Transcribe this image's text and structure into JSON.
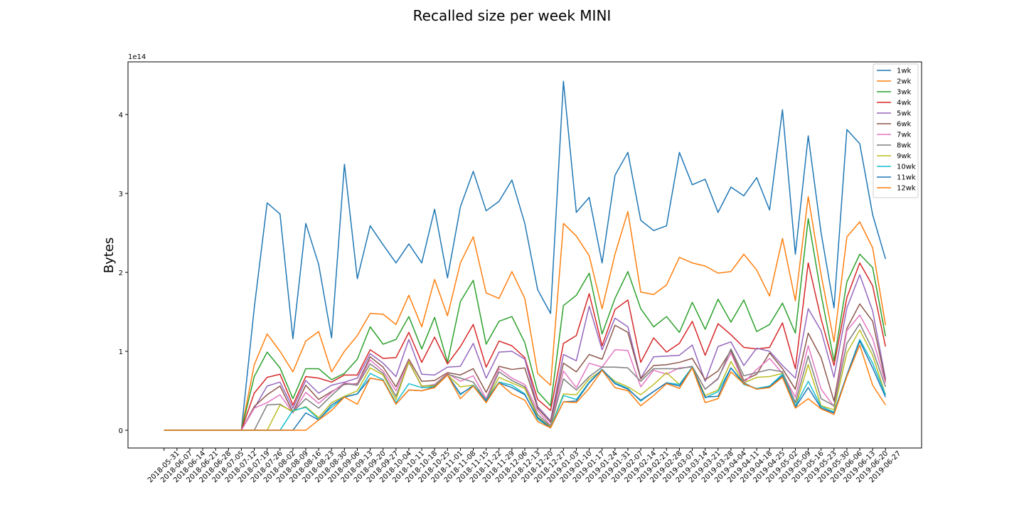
{
  "chart_data": {
    "type": "line",
    "title": "Recalled size per week MINI",
    "y_label": "Bytes",
    "y_offset_text": "1e14",
    "x": [
      "2018-05-31",
      "2018-06-07",
      "2018-06-14",
      "2018-06-21",
      "2018-06-28",
      "2018-07-05",
      "2018-07-12",
      "2018-07-19",
      "2018-07-26",
      "2018-08-02",
      "2018-08-09",
      "2018-08-16",
      "2018-08-23",
      "2018-08-30",
      "2018-09-06",
      "2018-09-13",
      "2018-09-20",
      "2018-09-27",
      "2018-10-04",
      "2018-10-11",
      "2018-10-18",
      "2018-10-25",
      "2018-11-01",
      "2018-11-08",
      "2018-11-15",
      "2018-11-22",
      "2018-11-29",
      "2018-12-06",
      "2018-12-13",
      "2018-12-20",
      "2018-12-27",
      "2019-01-03",
      "2019-01-10",
      "2019-01-17",
      "2019-01-24",
      "2019-01-31",
      "2019-02-07",
      "2019-02-14",
      "2019-02-21",
      "2019-02-28",
      "2019-03-07",
      "2019-03-14",
      "2019-03-21",
      "2019-03-28",
      "2019-04-04",
      "2019-04-11",
      "2019-04-18",
      "2019-04-25",
      "2019-05-02",
      "2019-05-09",
      "2019-05-16",
      "2019-05-23",
      "2019-05-30",
      "2019-06-06",
      "2019-06-13",
      "2019-06-20",
      "2019-06-27"
    ],
    "ylim": [
      -0.225,
      4.667
    ],
    "yticks": [
      0,
      1,
      2,
      3,
      4
    ],
    "legend": "upper right",
    "series": [
      {
        "name": "1wk",
        "color": "#1f77b4",
        "values": [
          0,
          0,
          0,
          0,
          0,
          0,
          0,
          1.55,
          2.88,
          2.74,
          1.16,
          2.62,
          2.1,
          1.17,
          3.37,
          1.92,
          2.59,
          2.35,
          2.12,
          2.36,
          2.12,
          2.8,
          1.93,
          2.83,
          3.28,
          2.78,
          2.9,
          3.17,
          2.62,
          1.78,
          1.48,
          4.42,
          2.76,
          2.95,
          2.12,
          3.23,
          3.52,
          2.66,
          2.53,
          2.59,
          3.52,
          3.11,
          3.18,
          2.76,
          3.08,
          2.97,
          3.2,
          2.79,
          4.06,
          2.23,
          3.73,
          2.5,
          1.55,
          3.81,
          3.63,
          2.73,
          2.17
        ]
      },
      {
        "name": "2wk",
        "color": "#ff7f0e",
        "values": [
          0,
          0,
          0,
          0,
          0,
          0,
          0,
          0.83,
          1.22,
          1.0,
          0.74,
          1.13,
          1.25,
          0.74,
          1.0,
          1.2,
          1.48,
          1.47,
          1.34,
          1.71,
          1.31,
          1.91,
          1.45,
          2.12,
          2.45,
          1.74,
          1.67,
          2.01,
          1.67,
          0.72,
          0.57,
          2.62,
          2.46,
          2.21,
          1.54,
          2.23,
          2.77,
          1.75,
          1.72,
          1.84,
          2.19,
          2.12,
          2.08,
          1.99,
          2.01,
          2.23,
          2.03,
          1.7,
          2.43,
          1.64,
          2.96,
          1.97,
          1.12,
          2.45,
          2.64,
          2.31,
          1.33
        ]
      },
      {
        "name": "3wk",
        "color": "#2ca02c",
        "values": [
          0,
          0,
          0,
          0,
          0,
          0,
          0,
          0.68,
          0.99,
          0.79,
          0.4,
          0.78,
          0.78,
          0.64,
          0.72,
          0.9,
          1.31,
          1.09,
          1.15,
          1.44,
          1.03,
          1.43,
          0.86,
          1.63,
          1.9,
          1.09,
          1.38,
          1.44,
          1.11,
          0.49,
          0.31,
          1.58,
          1.71,
          1.99,
          1.22,
          1.67,
          2.01,
          1.54,
          1.31,
          1.44,
          1.24,
          1.62,
          1.28,
          1.66,
          1.37,
          1.65,
          1.25,
          1.34,
          1.61,
          1.23,
          2.68,
          1.72,
          0.88,
          1.88,
          2.23,
          2.06,
          1.19
        ]
      },
      {
        "name": "4wk",
        "color": "#d62728",
        "values": [
          0,
          0,
          0,
          0,
          0,
          0,
          0,
          0.47,
          0.67,
          0.71,
          0.32,
          0.68,
          0.66,
          0.61,
          0.7,
          0.7,
          1.02,
          0.91,
          0.92,
          1.24,
          0.86,
          1.18,
          0.84,
          1.06,
          1.34,
          0.8,
          1.13,
          1.07,
          0.92,
          0.39,
          0.25,
          1.1,
          1.2,
          1.73,
          1.07,
          1.53,
          1.65,
          0.86,
          1.17,
          0.99,
          1.1,
          1.38,
          0.95,
          1.35,
          1.21,
          1.05,
          1.03,
          1.05,
          1.36,
          0.78,
          2.12,
          1.41,
          0.82,
          1.68,
          2.12,
          1.83,
          1.06
        ]
      },
      {
        "name": "5wk",
        "color": "#9467bd",
        "values": [
          0,
          0,
          0,
          0,
          0,
          0,
          0,
          0.28,
          0.56,
          0.61,
          0.28,
          0.63,
          0.47,
          0.57,
          0.61,
          0.66,
          0.97,
          0.85,
          0.68,
          1.15,
          0.71,
          0.7,
          0.8,
          0.81,
          1.1,
          0.66,
          0.99,
          1.0,
          0.9,
          0.3,
          0.12,
          0.96,
          0.88,
          1.57,
          1.02,
          1.42,
          1.31,
          0.66,
          0.93,
          0.94,
          0.95,
          1.08,
          0.62,
          1.06,
          1.12,
          0.82,
          1.04,
          1.0,
          0.82,
          0.66,
          1.54,
          1.26,
          0.67,
          1.55,
          1.97,
          1.51,
          0.65
        ]
      },
      {
        "name": "6wk",
        "color": "#8c564b",
        "values": [
          0,
          0,
          0,
          0,
          0,
          0,
          0,
          0.3,
          0.45,
          0.56,
          0.23,
          0.57,
          0.39,
          0.49,
          0.58,
          0.59,
          0.93,
          0.8,
          0.55,
          0.9,
          0.62,
          0.63,
          0.73,
          0.7,
          0.78,
          0.48,
          0.81,
          0.77,
          0.79,
          0.28,
          0.1,
          0.85,
          0.74,
          0.96,
          0.9,
          1.33,
          1.24,
          0.65,
          0.82,
          0.83,
          0.86,
          0.91,
          0.64,
          0.75,
          1.01,
          0.63,
          0.71,
          0.98,
          0.78,
          0.52,
          1.23,
          0.92,
          0.37,
          1.29,
          1.6,
          1.38,
          0.62
        ]
      },
      {
        "name": "7wk",
        "color": "#e377c2",
        "values": [
          0,
          0,
          0,
          0,
          0,
          0,
          0,
          0.28,
          0.35,
          0.45,
          0.22,
          0.48,
          0.34,
          0.48,
          0.6,
          0.58,
          0.89,
          0.75,
          0.5,
          0.88,
          0.55,
          0.58,
          0.72,
          0.62,
          0.69,
          0.4,
          0.78,
          0.66,
          0.58,
          0.25,
          0.06,
          0.75,
          0.54,
          0.85,
          0.8,
          1.02,
          1.01,
          0.55,
          0.76,
          0.71,
          0.79,
          0.8,
          0.52,
          0.66,
          0.98,
          0.6,
          0.77,
          0.91,
          0.72,
          0.42,
          1.07,
          0.52,
          0.3,
          1.26,
          1.46,
          1.16,
          0.6
        ]
      },
      {
        "name": "8wk",
        "color": "#7f7f7f",
        "values": [
          0,
          0,
          0,
          0,
          0,
          0,
          0,
          0,
          0.32,
          0.33,
          0.23,
          0.4,
          0.28,
          0.44,
          0.59,
          0.57,
          0.84,
          0.72,
          0.43,
          0.86,
          0.56,
          0.57,
          0.71,
          0.66,
          0.61,
          0.38,
          0.74,
          0.63,
          0.55,
          0.2,
          0.05,
          0.65,
          0.51,
          0.68,
          0.8,
          0.8,
          0.79,
          0.62,
          0.78,
          0.78,
          0.78,
          0.81,
          0.52,
          0.65,
          1.03,
          0.69,
          0.73,
          0.77,
          0.74,
          0.35,
          0.94,
          0.4,
          0.31,
          1.1,
          1.35,
          1.02,
          0.55
        ]
      },
      {
        "name": "9wk",
        "color": "#bcbd22",
        "values": [
          0,
          0,
          0,
          0,
          0,
          0,
          0,
          0,
          0,
          0.32,
          0.24,
          0.3,
          0.16,
          0.35,
          0.43,
          0.5,
          0.79,
          0.7,
          0.39,
          0.87,
          0.56,
          0.56,
          0.7,
          0.55,
          0.57,
          0.37,
          0.67,
          0.6,
          0.53,
          0.17,
          0.04,
          0.46,
          0.45,
          0.65,
          0.76,
          0.62,
          0.55,
          0.45,
          0.58,
          0.73,
          0.58,
          0.8,
          0.44,
          0.51,
          0.87,
          0.6,
          0.67,
          0.68,
          0.72,
          0.3,
          0.83,
          0.31,
          0.26,
          0.98,
          1.27,
          0.95,
          0.45
        ]
      },
      {
        "name": "10wk",
        "color": "#17becf",
        "values": [
          0,
          0,
          0,
          0,
          0,
          0,
          0,
          0,
          0,
          0,
          0.25,
          0.29,
          0.14,
          0.29,
          0.42,
          0.46,
          0.72,
          0.64,
          0.35,
          0.59,
          0.54,
          0.55,
          0.7,
          0.45,
          0.57,
          0.38,
          0.61,
          0.57,
          0.46,
          0.14,
          0.03,
          0.44,
          0.39,
          0.61,
          0.77,
          0.6,
          0.53,
          0.37,
          0.49,
          0.6,
          0.58,
          0.8,
          0.41,
          0.49,
          0.79,
          0.58,
          0.53,
          0.56,
          0.71,
          0.31,
          0.62,
          0.3,
          0.23,
          0.7,
          1.15,
          0.85,
          0.45
        ]
      },
      {
        "name": "11wk",
        "color": "#1f77b4",
        "values": [
          0,
          0,
          0,
          0,
          0,
          0,
          0,
          0,
          0,
          0,
          0,
          0.22,
          0.13,
          0.32,
          0.42,
          0.46,
          0.66,
          0.63,
          0.33,
          0.51,
          0.5,
          0.55,
          0.7,
          0.46,
          0.56,
          0.37,
          0.6,
          0.54,
          0.45,
          0.16,
          0.03,
          0.36,
          0.37,
          0.6,
          0.77,
          0.59,
          0.52,
          0.38,
          0.49,
          0.6,
          0.56,
          0.79,
          0.42,
          0.43,
          0.79,
          0.6,
          0.52,
          0.55,
          0.69,
          0.29,
          0.54,
          0.28,
          0.22,
          0.7,
          1.13,
          0.79,
          0.42
        ]
      },
      {
        "name": "12wk",
        "color": "#ff7f0e",
        "values": [
          0,
          0,
          0,
          0,
          0,
          0,
          0,
          0,
          0,
          0,
          0,
          0,
          0.13,
          0.25,
          0.42,
          0.33,
          0.66,
          0.63,
          0.33,
          0.51,
          0.5,
          0.54,
          0.7,
          0.4,
          0.56,
          0.35,
          0.6,
          0.46,
          0.38,
          0.11,
          0.03,
          0.36,
          0.35,
          0.53,
          0.76,
          0.54,
          0.5,
          0.31,
          0.44,
          0.59,
          0.53,
          0.79,
          0.35,
          0.4,
          0.74,
          0.59,
          0.52,
          0.54,
          0.67,
          0.28,
          0.4,
          0.27,
          0.2,
          0.68,
          1.08,
          0.57,
          0.32
        ]
      }
    ]
  }
}
